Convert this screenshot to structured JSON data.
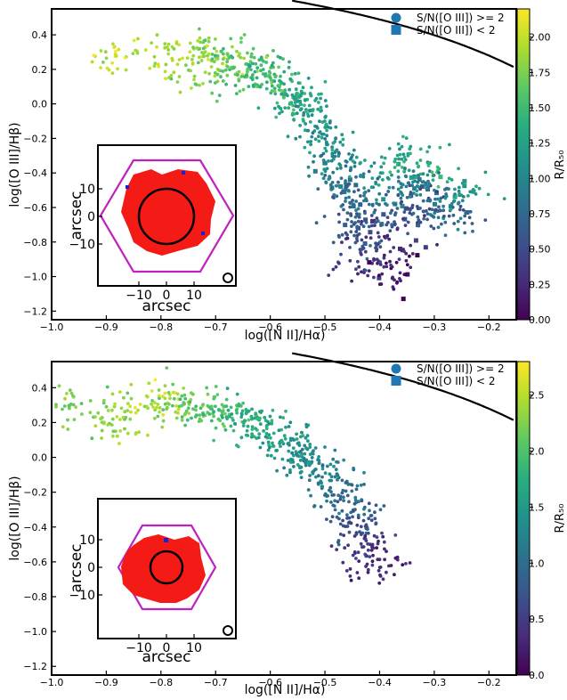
{
  "chart_data": [
    {
      "type": "scatter",
      "xlabel": "log([N II]/Hα)",
      "ylabel": "log([O III]/Hβ)",
      "xlim": [
        -1.0,
        -0.15
      ],
      "ylim": [
        -1.25,
        0.55
      ],
      "xticks": [
        "−1.0",
        "−0.9",
        "−0.8",
        "−0.7",
        "−0.6",
        "−0.5",
        "−0.4",
        "−0.3",
        "−0.2"
      ],
      "yticks": [
        "0.4",
        "0.2",
        "0.0",
        "−0.2",
        "−0.4",
        "−0.6",
        "−0.8",
        "−1.0",
        "−1.2"
      ],
      "legend": [
        "S/N([O III]) >= 2",
        "S/N([O III]) < 2"
      ],
      "legend_position": "top-right",
      "colorbar": {
        "label": "R/R₅₀",
        "ticks": [
          "0.00",
          "0.25",
          "0.50",
          "0.75",
          "1.00",
          "1.25",
          "1.50",
          "1.75",
          "2.00"
        ],
        "range": [
          0.0,
          2.2
        ]
      },
      "inset": {
        "xlabel": "arcsec",
        "ylabel": "arcsec",
        "xticks": [
          "−10",
          "0",
          "10"
        ],
        "yticks": [
          "10",
          "0",
          "−10"
        ]
      },
      "series": [
        {
          "x": [
            -0.88,
            -0.79,
            -0.75,
            -0.72,
            -0.7,
            -0.68,
            -0.66,
            -0.63,
            -0.62,
            -0.6,
            -0.58,
            -0.56,
            -0.55,
            -0.53,
            -0.52,
            -0.5,
            -0.49,
            -0.48,
            -0.47,
            -0.46,
            -0.45,
            -0.44,
            -0.43,
            -0.42,
            -0.41,
            -0.4,
            -0.39,
            -0.38,
            -0.37,
            -0.36,
            -0.35,
            -0.34,
            -0.33,
            -0.32,
            -0.3,
            -0.28,
            -0.26,
            -0.24
          ],
          "y": [
            0.29,
            0.27,
            0.2,
            0.33,
            0.27,
            0.16,
            0.24,
            0.2,
            0.12,
            0.16,
            0.1,
            0.04,
            -0.02,
            0.02,
            -0.1,
            -0.18,
            -0.27,
            -0.35,
            -0.44,
            -0.52,
            -0.64,
            -0.72,
            -0.83,
            -0.93,
            -0.4,
            -0.55,
            -0.68,
            -0.85,
            -0.97,
            -0.3,
            -0.48,
            -0.6,
            -0.45,
            -0.62,
            -0.38,
            -0.55,
            -0.66,
            -0.5
          ],
          "c": [
            2.0,
            1.9,
            1.85,
            1.8,
            1.75,
            1.7,
            1.6,
            1.55,
            1.5,
            1.45,
            1.4,
            1.35,
            1.3,
            1.25,
            1.2,
            1.15,
            1.1,
            1.0,
            0.9,
            0.8,
            0.7,
            0.6,
            0.5,
            0.3,
            1.2,
            0.9,
            0.6,
            0.3,
            0.1,
            1.3,
            0.8,
            0.5,
            1.0,
            0.6,
            1.4,
            0.9,
            0.7,
            1.2
          ]
        }
      ]
    },
    {
      "type": "scatter",
      "xlabel": "log([N II]/Hα)",
      "ylabel": "log([O III]/Hβ)",
      "xlim": [
        -1.0,
        -0.15
      ],
      "ylim": [
        -1.25,
        0.55
      ],
      "xticks": [
        "−1.0",
        "−0.9",
        "−0.8",
        "−0.7",
        "−0.6",
        "−0.5",
        "−0.4",
        "−0.3",
        "−0.2"
      ],
      "yticks": [
        "0.4",
        "0.2",
        "0.0",
        "−0.2",
        "−0.4",
        "−0.6",
        "−0.8",
        "−1.0",
        "−1.2"
      ],
      "legend": [
        "S/N([O III]) >= 2",
        "S/N([O III]) < 2"
      ],
      "legend_position": "top-right",
      "colorbar": {
        "label": "R/R₅₀",
        "ticks": [
          "0.0",
          "0.5",
          "1.0",
          "1.5",
          "2.0",
          "2.5"
        ],
        "range": [
          0.0,
          2.8
        ]
      },
      "inset": {
        "xlabel": "arcsec",
        "ylabel": "arcsec",
        "xticks": [
          "−10",
          "0",
          "10"
        ],
        "yticks": [
          "10",
          "0",
          "−10"
        ]
      },
      "series": [
        {
          "x": [
            -0.96,
            -0.9,
            -0.85,
            -0.8,
            -0.77,
            -0.74,
            -0.71,
            -0.68,
            -0.65,
            -0.62,
            -0.6,
            -0.57,
            -0.55,
            -0.53,
            -0.51,
            -0.49,
            -0.47,
            -0.45,
            -0.44,
            -0.43,
            -0.42,
            -0.41
          ],
          "y": [
            0.3,
            0.2,
            0.26,
            0.35,
            0.28,
            0.3,
            0.24,
            0.26,
            0.2,
            0.18,
            0.12,
            0.1,
            0.04,
            0.0,
            -0.06,
            -0.14,
            -0.22,
            -0.3,
            -0.38,
            -0.46,
            -0.54,
            -0.6
          ],
          "c": [
            2.2,
            2.3,
            2.4,
            2.5,
            2.2,
            2.1,
            2.0,
            1.9,
            1.8,
            1.7,
            1.6,
            1.5,
            1.45,
            1.35,
            1.25,
            1.15,
            1.05,
            0.9,
            0.75,
            0.6,
            0.45,
            0.3
          ]
        }
      ]
    }
  ]
}
